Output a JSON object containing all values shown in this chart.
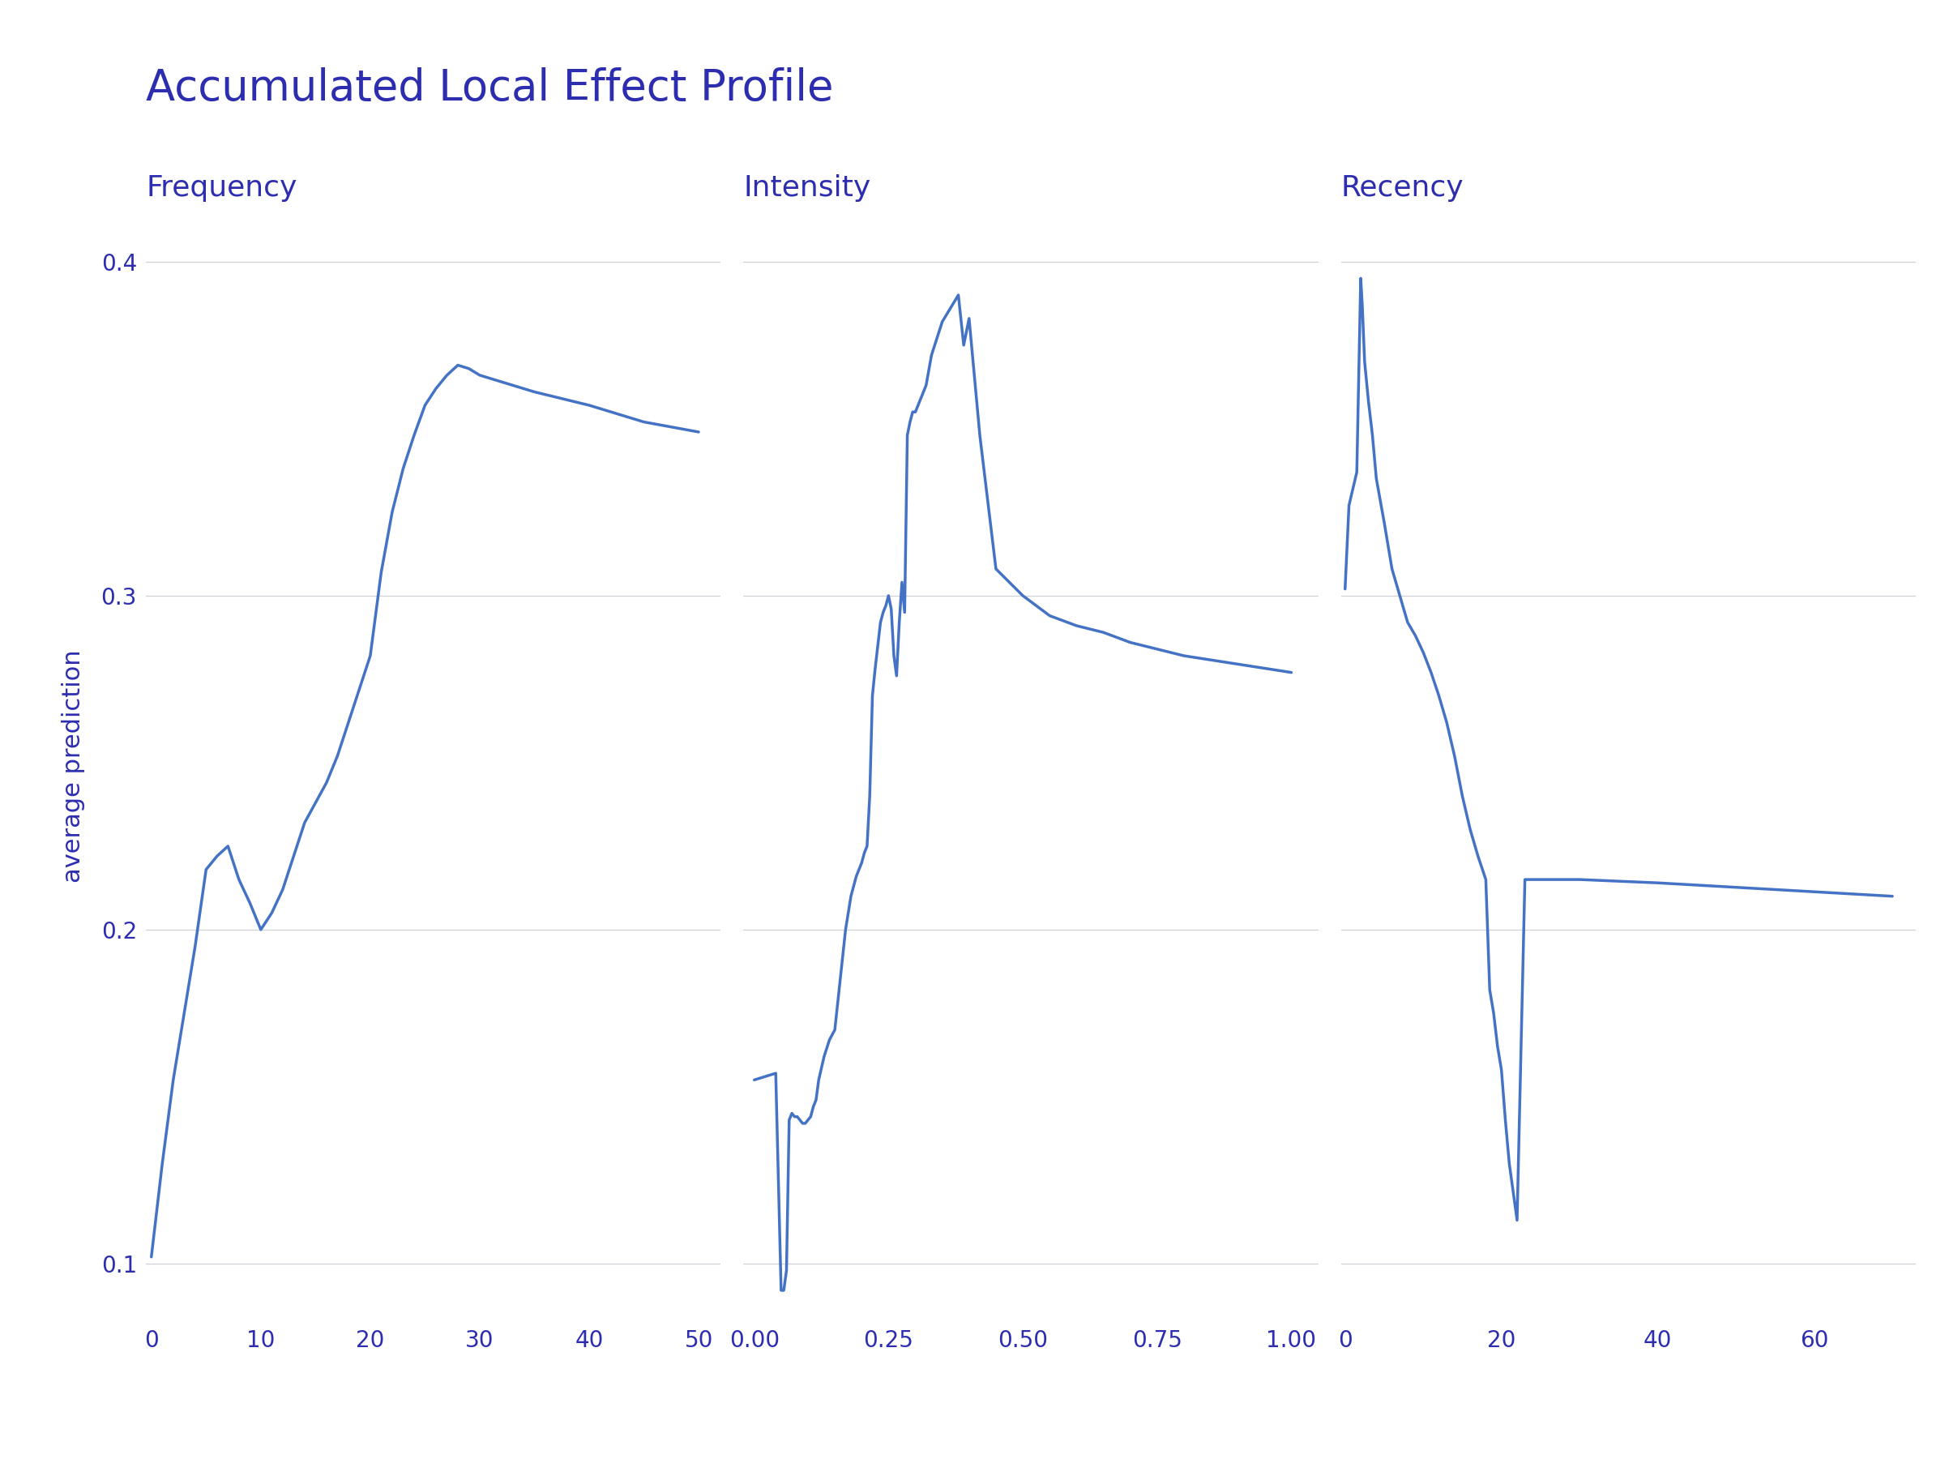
{
  "title": "Accumulated Local Effect Profile",
  "subplot_titles": [
    "Frequency",
    "Intensity",
    "Recency"
  ],
  "ylabel": "average prediction",
  "title_color": "#2d2db0",
  "subplot_title_color": "#2d2db0",
  "ylabel_color": "#2d2db0",
  "tick_color": "#2d2db0",
  "line_color": "#4472c4",
  "background_color": "#ffffff",
  "grid_color": "#d0d0d8",
  "title_fontsize": 38,
  "subtitle_fontsize": 26,
  "ylabel_fontsize": 22,
  "tick_fontsize": 20,
  "ylim": [
    0.083,
    0.415
  ],
  "yticks": [
    0.1,
    0.2,
    0.3,
    0.4
  ],
  "freq_x": [
    0,
    1,
    2,
    3,
    4,
    5,
    6,
    7,
    8,
    9,
    10,
    11,
    12,
    13,
    14,
    15,
    16,
    17,
    18,
    19,
    20,
    21,
    22,
    23,
    24,
    25,
    26,
    27,
    28,
    29,
    30,
    35,
    40,
    45,
    50
  ],
  "freq_y": [
    0.102,
    0.13,
    0.155,
    0.175,
    0.195,
    0.218,
    0.222,
    0.225,
    0.215,
    0.208,
    0.2,
    0.205,
    0.212,
    0.222,
    0.232,
    0.238,
    0.244,
    0.252,
    0.262,
    0.272,
    0.282,
    0.307,
    0.325,
    0.338,
    0.348,
    0.357,
    0.362,
    0.366,
    0.369,
    0.368,
    0.366,
    0.361,
    0.357,
    0.352,
    0.349
  ],
  "freq_xlim": [
    -0.5,
    52
  ],
  "freq_xticks": [
    0,
    10,
    20,
    30,
    40,
    50
  ],
  "intens_x": [
    0.0,
    0.02,
    0.04,
    0.05,
    0.055,
    0.06,
    0.065,
    0.07,
    0.075,
    0.08,
    0.085,
    0.09,
    0.095,
    0.1,
    0.105,
    0.11,
    0.115,
    0.12,
    0.13,
    0.14,
    0.15,
    0.16,
    0.17,
    0.175,
    0.18,
    0.185,
    0.19,
    0.195,
    0.2,
    0.205,
    0.21,
    0.215,
    0.22,
    0.225,
    0.23,
    0.235,
    0.24,
    0.245,
    0.25,
    0.255,
    0.26,
    0.265,
    0.27,
    0.275,
    0.28,
    0.285,
    0.29,
    0.295,
    0.3,
    0.32,
    0.33,
    0.35,
    0.38,
    0.39,
    0.4,
    0.42,
    0.45,
    0.5,
    0.55,
    0.6,
    0.65,
    0.7,
    0.75,
    0.8,
    1.0
  ],
  "intens_y": [
    0.155,
    0.156,
    0.157,
    0.092,
    0.092,
    0.098,
    0.143,
    0.145,
    0.144,
    0.144,
    0.143,
    0.142,
    0.142,
    0.143,
    0.144,
    0.147,
    0.149,
    0.155,
    0.162,
    0.167,
    0.17,
    0.185,
    0.2,
    0.205,
    0.21,
    0.213,
    0.216,
    0.218,
    0.22,
    0.223,
    0.225,
    0.24,
    0.27,
    0.278,
    0.285,
    0.292,
    0.295,
    0.297,
    0.3,
    0.296,
    0.282,
    0.276,
    0.292,
    0.304,
    0.295,
    0.348,
    0.352,
    0.355,
    0.355,
    0.363,
    0.372,
    0.382,
    0.39,
    0.375,
    0.383,
    0.348,
    0.308,
    0.3,
    0.294,
    0.291,
    0.289,
    0.286,
    0.284,
    0.282,
    0.277
  ],
  "intens_xlim": [
    -0.02,
    1.05
  ],
  "intens_xticks": [
    0.0,
    0.25,
    0.5,
    0.75,
    1.0
  ],
  "recency_x": [
    0,
    0.5,
    1.0,
    1.5,
    2.0,
    2.2,
    2.5,
    3.0,
    3.5,
    4.0,
    5.0,
    6.0,
    7.0,
    8.0,
    9.0,
    10.0,
    11.0,
    12.0,
    13.0,
    14.0,
    15.0,
    16.0,
    17.0,
    18.0,
    18.5,
    19.0,
    19.5,
    20.0,
    20.5,
    21.0,
    22.0,
    23.0,
    25.0,
    30.0,
    40.0,
    55.0,
    70.0
  ],
  "recency_y": [
    0.302,
    0.327,
    0.332,
    0.337,
    0.395,
    0.387,
    0.37,
    0.358,
    0.348,
    0.335,
    0.322,
    0.308,
    0.3,
    0.292,
    0.288,
    0.283,
    0.277,
    0.27,
    0.262,
    0.252,
    0.24,
    0.23,
    0.222,
    0.215,
    0.182,
    0.175,
    0.165,
    0.158,
    0.143,
    0.13,
    0.113,
    0.215,
    0.215,
    0.215,
    0.214,
    0.212,
    0.21
  ],
  "recency_xlim": [
    -0.5,
    73
  ],
  "recency_xticks": [
    0,
    20,
    40,
    60
  ]
}
